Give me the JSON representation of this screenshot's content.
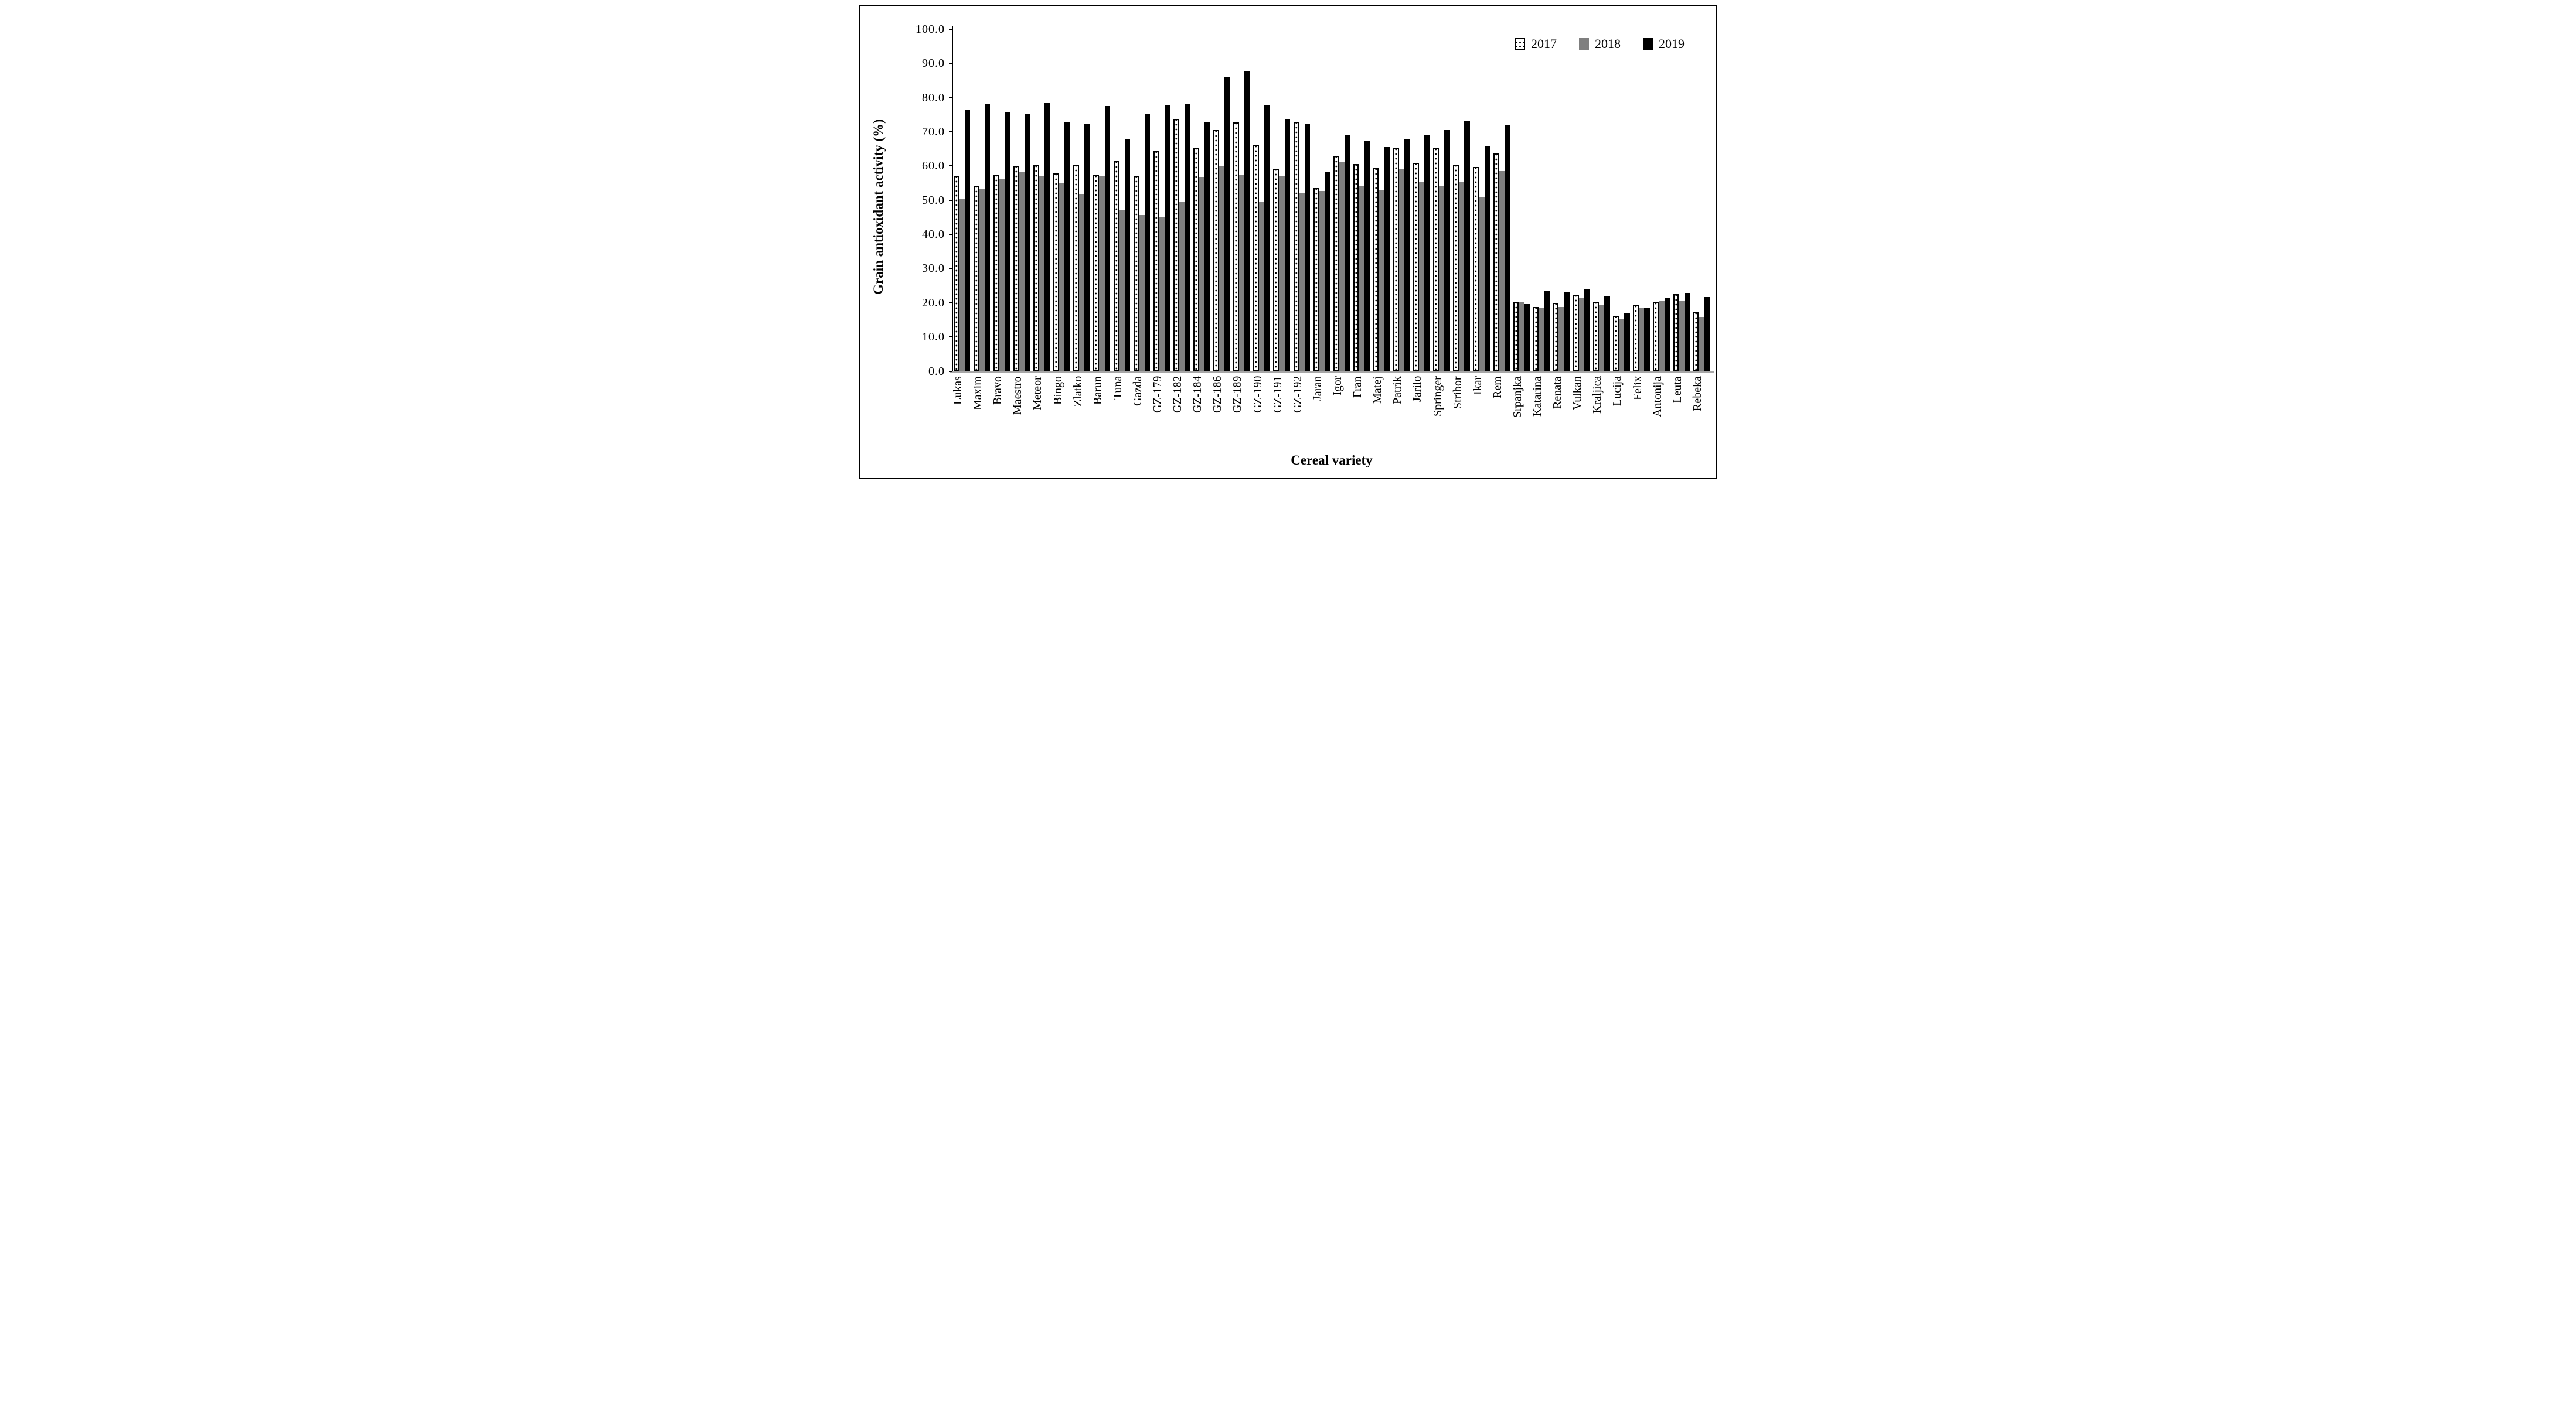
{
  "figure": {
    "kind": "grouped-bar-chart",
    "border_color": "#000000",
    "background": "#ffffff"
  },
  "colors": {
    "series_2017_fill": "#ffffff",
    "series_2017_border": "#000000",
    "series_2018_gray": "#7f7f7f",
    "series_2019_black": "#000000",
    "x_axis_line_gray": "#a6a6a6",
    "text": "#000000"
  },
  "legend": {
    "position": "top-right",
    "items": [
      {
        "label": "2017",
        "swatch": "dotted-white"
      },
      {
        "label": "2018",
        "swatch": "solid-gray"
      },
      {
        "label": "2019",
        "swatch": "solid-black"
      }
    ]
  },
  "axes": {
    "y_tick_labels": [
      "100.0",
      "90.0",
      "80.0",
      "70.0",
      "60.0",
      "50.0",
      "40.0",
      "30.0",
      "20.0",
      "10.0",
      "0.0"
    ],
    "y_title": "Grain antioxidant activity (%)",
    "x_title": "Cereal variety"
  },
  "chart_data": {
    "type": "bar",
    "title": "",
    "xlabel": "Cereal variety",
    "ylabel": "Grain antioxidant activity (%)",
    "ylim": [
      0,
      100
    ],
    "ytick_step": 10,
    "grid": false,
    "legend_position": "top-right",
    "categories": [
      "Lukas",
      "Maxim",
      "Bravo",
      "Maestro",
      "Meteor",
      "Bingo",
      "Zlatko",
      "Barun",
      "Tuna",
      "Gazda",
      "GZ-179",
      "GZ-182",
      "GZ-184",
      "GZ-186",
      "GZ-189",
      "GZ-190",
      "GZ-191",
      "GZ-192",
      "Jaran",
      "Igor",
      "Fran",
      "Matej",
      "Patrik",
      "Jarilo",
      "Springer",
      "Stribor",
      "Ikar",
      "Rem",
      "Srpanjka",
      "Katarina",
      "Renata",
      "Vulkan",
      "Kraljica",
      "Lucija",
      "Felix",
      "Antonija",
      "Leuta",
      "Rebeka"
    ],
    "series": [
      {
        "name": "2017",
        "values": [
          57.2,
          54.3,
          57.5,
          60.0,
          60.3,
          57.9,
          60.4,
          57.3,
          61.4,
          57.1,
          64.4,
          73.7,
          65.3,
          70.5,
          72.8,
          66.0,
          59.2,
          73.0,
          53.5,
          63.0,
          60.6,
          59.4,
          65.2,
          60.9,
          65.2,
          60.4,
          59.8,
          63.7,
          20.3,
          18.8,
          20.0,
          22.4,
          20.3,
          16.2,
          19.3,
          20.2,
          22.6,
          17.2
        ]
      },
      {
        "name": "2018",
        "values": [
          50.3,
          53.3,
          56.1,
          58.1,
          57.2,
          55.1,
          51.8,
          57.2,
          47.2,
          45.6,
          45.1,
          49.5,
          56.8,
          60.1,
          57.5,
          49.6,
          57.0,
          52.1,
          52.7,
          61.1,
          54.0,
          53.0,
          59.1,
          55.2,
          54.1,
          55.4,
          50.8,
          58.6,
          20.1,
          18.5,
          18.8,
          21.5,
          19.2,
          15.4,
          18.5,
          20.6,
          20.4,
          15.8
        ]
      },
      {
        "name": "2019",
        "values": [
          76.6,
          78.2,
          75.9,
          75.1,
          78.6,
          73.0,
          72.2,
          77.6,
          67.9,
          75.2,
          77.8,
          78.0,
          72.7,
          85.9,
          87.9,
          77.9,
          73.7,
          72.4,
          58.1,
          69.2,
          67.4,
          65.6,
          67.7,
          68.9,
          70.6,
          73.3,
          65.8,
          71.9,
          19.6,
          23.6,
          23.1,
          23.9,
          22.1,
          17.1,
          18.6,
          21.5,
          22.9,
          21.6
        ]
      }
    ]
  }
}
